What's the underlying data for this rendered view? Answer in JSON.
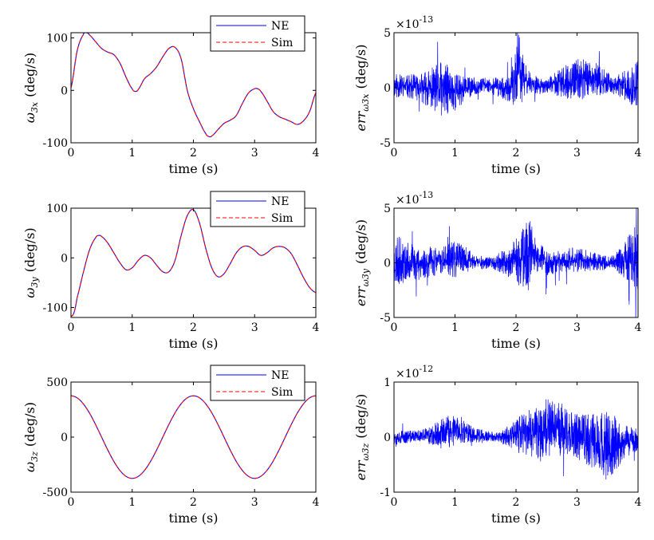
{
  "figure": {
    "background": "#ffffff"
  },
  "chart_data": [
    {
      "id": "w3x",
      "type": "line",
      "xlim": [
        0,
        4
      ],
      "ylim": [
        -100,
        110
      ],
      "xticks": [
        "0",
        "1",
        "2",
        "3",
        "4"
      ],
      "yticks": [
        "-100",
        "0",
        "100"
      ],
      "ytick_values": [
        -100,
        0,
        100
      ],
      "xlabel": "time (s)",
      "ylabel_main": "ω",
      "ylabel_sub": "3x",
      "ylabel_unit": "(deg/s)",
      "legend": [
        "NE",
        "Sim"
      ],
      "legend_position": "top-right",
      "series": [
        {
          "name": "NE",
          "color": "#0000ff",
          "style": "solid",
          "x": [
            0,
            0.1,
            0.2,
            0.25,
            0.3,
            0.4,
            0.5,
            0.6,
            0.7,
            0.8,
            0.9,
            1.0,
            1.05,
            1.1,
            1.2,
            1.3,
            1.4,
            1.5,
            1.6,
            1.7,
            1.8,
            1.9,
            2.0,
            2.1,
            2.2,
            2.25,
            2.3,
            2.4,
            2.5,
            2.6,
            2.7,
            2.8,
            2.9,
            3.0,
            3.05,
            3.1,
            3.2,
            3.3,
            3.4,
            3.5,
            3.6,
            3.7,
            3.8,
            3.9,
            4.0
          ],
          "y": [
            5,
            75,
            106,
            110,
            106,
            93,
            80,
            73,
            68,
            52,
            25,
            3,
            -2,
            2,
            22,
            32,
            45,
            64,
            80,
            82,
            60,
            0,
            -35,
            -60,
            -82,
            -88,
            -87,
            -75,
            -63,
            -57,
            -48,
            -25,
            -5,
            3,
            3,
            -2,
            -20,
            -40,
            -50,
            -55,
            -60,
            -65,
            -58,
            -40,
            -5
          ]
        },
        {
          "name": "Sim",
          "color": "#ff0000",
          "style": "dashed",
          "x": [
            0,
            0.1,
            0.2,
            0.25,
            0.3,
            0.4,
            0.5,
            0.6,
            0.7,
            0.8,
            0.9,
            1.0,
            1.05,
            1.1,
            1.2,
            1.3,
            1.4,
            1.5,
            1.6,
            1.7,
            1.8,
            1.9,
            2.0,
            2.1,
            2.2,
            2.25,
            2.3,
            2.4,
            2.5,
            2.6,
            2.7,
            2.8,
            2.9,
            3.0,
            3.05,
            3.1,
            3.2,
            3.3,
            3.4,
            3.5,
            3.6,
            3.7,
            3.8,
            3.9,
            4.0
          ],
          "y": [
            5,
            75,
            106,
            110,
            106,
            93,
            80,
            73,
            68,
            52,
            25,
            3,
            -2,
            2,
            22,
            32,
            45,
            64,
            80,
            82,
            60,
            0,
            -35,
            -60,
            -82,
            -88,
            -87,
            -75,
            -63,
            -57,
            -48,
            -25,
            -5,
            3,
            3,
            -2,
            -20,
            -40,
            -50,
            -55,
            -60,
            -65,
            -58,
            -40,
            -5
          ]
        }
      ]
    },
    {
      "id": "err_w3x",
      "type": "line",
      "xlim": [
        0,
        4
      ],
      "ylim": [
        -5,
        5
      ],
      "xticks": [
        "0",
        "1",
        "2",
        "3",
        "4"
      ],
      "yticks": [
        "-5",
        "0",
        "5"
      ],
      "ytick_values": [
        -5,
        0,
        5
      ],
      "exponent": "×10",
      "exponent_power": "-13",
      "xlabel": "time (s)",
      "ylabel_main": "err",
      "ylabel_sub": "ω3x",
      "ylabel_unit": "(deg/s)",
      "series": [
        {
          "name": "err",
          "color": "#0000ff",
          "style": "solid",
          "noise": true,
          "seed": 11,
          "baseline_x": [
            0,
            0.5,
            1.0,
            1.5,
            1.9,
            2.05,
            2.1,
            2.4,
            2.9,
            3.2,
            3.6,
            4.0
          ],
          "baseline_y": [
            0.2,
            0.0,
            -0.3,
            0.3,
            -0.2,
            1.8,
            0.8,
            0.1,
            0.6,
            1.0,
            0.2,
            0.1
          ],
          "envelope_x": [
            0,
            0.2,
            0.5,
            0.8,
            1.0,
            1.2,
            1.5,
            1.9,
            2.05,
            2.2,
            2.5,
            2.8,
            3.1,
            3.3,
            3.6,
            3.9,
            4.0
          ],
          "envelope_y": [
            1.2,
            1.0,
            1.5,
            2.6,
            1.8,
            1.0,
            0.6,
            1.2,
            3.2,
            1.0,
            0.6,
            1.5,
            2.0,
            1.5,
            0.8,
            1.8,
            2.4
          ]
        }
      ]
    },
    {
      "id": "w3y",
      "type": "line",
      "xlim": [
        0,
        4
      ],
      "ylim": [
        -120,
        100
      ],
      "xticks": [
        "0",
        "1",
        "2",
        "3",
        "4"
      ],
      "yticks": [
        "-100",
        "0",
        "100"
      ],
      "ytick_values": [
        -100,
        0,
        100
      ],
      "xlabel": "time (s)",
      "ylabel_main": "ω",
      "ylabel_sub": "3y",
      "ylabel_unit": "(deg/s)",
      "legend": [
        "NE",
        "Sim"
      ],
      "legend_position": "top-right",
      "series": [
        {
          "name": "NE",
          "color": "#0000ff",
          "style": "solid",
          "x": [
            0,
            0.05,
            0.1,
            0.2,
            0.3,
            0.4,
            0.45,
            0.5,
            0.6,
            0.7,
            0.8,
            0.9,
            1.0,
            1.1,
            1.2,
            1.3,
            1.4,
            1.5,
            1.6,
            1.7,
            1.8,
            1.9,
            2.0,
            2.1,
            2.2,
            2.3,
            2.4,
            2.5,
            2.6,
            2.7,
            2.8,
            2.9,
            3.0,
            3.1,
            3.2,
            3.3,
            3.4,
            3.5,
            3.6,
            3.7,
            3.8,
            3.9,
            4.0
          ],
          "y": [
            -118,
            -110,
            -80,
            -30,
            15,
            40,
            45,
            43,
            30,
            10,
            -10,
            -24,
            -20,
            -5,
            5,
            0,
            -15,
            -28,
            -28,
            -5,
            45,
            85,
            97,
            70,
            20,
            -20,
            -38,
            -32,
            -12,
            10,
            22,
            23,
            15,
            5,
            10,
            20,
            23,
            20,
            8,
            -15,
            -40,
            -60,
            -70
          ]
        },
        {
          "name": "Sim",
          "color": "#ff0000",
          "style": "dashed",
          "x": [
            0,
            0.05,
            0.1,
            0.2,
            0.3,
            0.4,
            0.45,
            0.5,
            0.6,
            0.7,
            0.8,
            0.9,
            1.0,
            1.1,
            1.2,
            1.3,
            1.4,
            1.5,
            1.6,
            1.7,
            1.8,
            1.9,
            2.0,
            2.1,
            2.2,
            2.3,
            2.4,
            2.5,
            2.6,
            2.7,
            2.8,
            2.9,
            3.0,
            3.1,
            3.2,
            3.3,
            3.4,
            3.5,
            3.6,
            3.7,
            3.8,
            3.9,
            4.0
          ],
          "y": [
            -118,
            -110,
            -80,
            -30,
            15,
            40,
            45,
            43,
            30,
            10,
            -10,
            -24,
            -20,
            -5,
            5,
            0,
            -15,
            -28,
            -28,
            -5,
            45,
            85,
            97,
            70,
            20,
            -20,
            -38,
            -32,
            -12,
            10,
            22,
            23,
            15,
            5,
            10,
            20,
            23,
            20,
            8,
            -15,
            -40,
            -60,
            -70
          ]
        }
      ]
    },
    {
      "id": "err_w3y",
      "type": "line",
      "xlim": [
        0,
        4
      ],
      "ylim": [
        -5,
        5
      ],
      "xticks": [
        "0",
        "1",
        "2",
        "3",
        "4"
      ],
      "yticks": [
        "-5",
        "0",
        "5"
      ],
      "ytick_values": [
        -5,
        0,
        5
      ],
      "exponent": "×10",
      "exponent_power": "-13",
      "xlabel": "time (s)",
      "ylabel_main": "err",
      "ylabel_sub": "ω3y",
      "ylabel_unit": "(deg/s)",
      "series": [
        {
          "name": "err",
          "color": "#0000ff",
          "style": "solid",
          "noise": true,
          "seed": 23,
          "baseline_x": [
            0,
            0.5,
            1.0,
            1.5,
            2.0,
            2.2,
            2.5,
            3.0,
            3.5,
            4.0
          ],
          "baseline_y": [
            0.2,
            0.0,
            0.4,
            0.0,
            0.1,
            0.8,
            0.0,
            0.3,
            0.0,
            0.5
          ],
          "envelope_x": [
            0,
            0.2,
            0.5,
            0.8,
            1.0,
            1.3,
            1.6,
            1.9,
            2.2,
            2.4,
            2.7,
            3.0,
            3.3,
            3.6,
            3.9,
            4.0
          ],
          "envelope_y": [
            2.5,
            1.8,
            1.5,
            1.2,
            1.8,
            0.8,
            0.5,
            1.5,
            3.5,
            1.5,
            1.0,
            1.2,
            0.8,
            0.6,
            2.5,
            3.5
          ]
        }
      ]
    },
    {
      "id": "w3z",
      "type": "line",
      "xlim": [
        0,
        4
      ],
      "ylim": [
        -500,
        500
      ],
      "xticks": [
        "0",
        "1",
        "2",
        "3",
        "4"
      ],
      "yticks": [
        "-500",
        "0",
        "500"
      ],
      "ytick_values": [
        -500,
        0,
        500
      ],
      "xlabel": "time (s)",
      "ylabel_main": "ω",
      "ylabel_sub": "3z",
      "ylabel_unit": "(deg/s)",
      "legend": [
        "NE",
        "Sim"
      ],
      "legend_position": "top-right",
      "series": [
        {
          "name": "NE",
          "color": "#0000ff",
          "style": "solid",
          "func": "cos",
          "amplitude": 375,
          "period": 2
        },
        {
          "name": "Sim",
          "color": "#ff0000",
          "style": "dashed",
          "func": "cos",
          "amplitude": 375,
          "period": 2
        }
      ]
    },
    {
      "id": "err_w3z",
      "type": "line",
      "xlim": [
        0,
        4
      ],
      "ylim": [
        -1,
        1
      ],
      "xticks": [
        "0",
        "1",
        "2",
        "3",
        "4"
      ],
      "yticks": [
        "-1",
        "0",
        "1"
      ],
      "ytick_values": [
        -1,
        0,
        1
      ],
      "exponent": "×10",
      "exponent_power": "-12",
      "xlabel": "time (s)",
      "ylabel_main": "err",
      "ylabel_sub": "ω3z",
      "ylabel_unit": "(deg/s)",
      "series": [
        {
          "name": "err",
          "color": "#0000ff",
          "style": "solid",
          "noise": true,
          "seed": 37,
          "baseline_x": [
            0,
            0.5,
            1.0,
            1.5,
            2.0,
            2.6,
            3.0,
            3.5,
            4.0
          ],
          "baseline_y": [
            0.0,
            0.02,
            0.12,
            0.0,
            0.02,
            0.2,
            0.0,
            -0.15,
            -0.05
          ],
          "envelope_x": [
            0,
            0.4,
            0.9,
            1.3,
            1.7,
            2.0,
            2.3,
            2.6,
            2.9,
            3.2,
            3.5,
            3.8,
            4.0
          ],
          "envelope_y": [
            0.15,
            0.1,
            0.3,
            0.15,
            0.08,
            0.3,
            0.5,
            0.6,
            0.4,
            0.5,
            0.65,
            0.3,
            0.2
          ]
        }
      ]
    }
  ]
}
